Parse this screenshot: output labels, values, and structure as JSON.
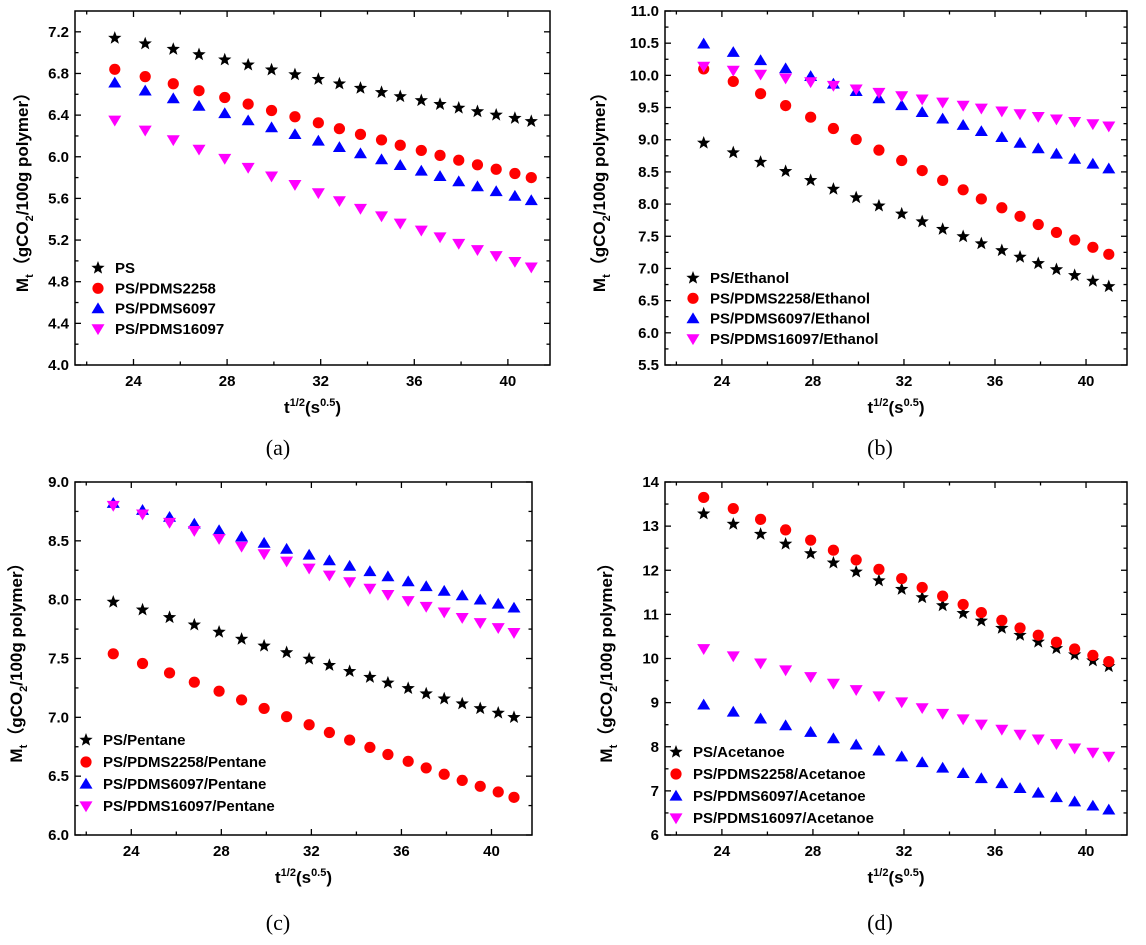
{
  "chart_data": [
    {
      "type": "scatter",
      "caption": "(a)",
      "xlabel": "t1/2(s0.5)",
      "xlabel_parts": {
        "main": "t",
        "sup1": "1/2",
        "mid": "(s",
        "sup2": "0.5",
        "end": ")"
      },
      "ylabel": "Mt（gCO2/100g polymer）",
      "ylabel_parts": {
        "main": "M",
        "sub1": "t",
        "mid": "（gCO",
        "sub2": "2",
        "end": "/100g polymer）"
      },
      "xlim": [
        21.5,
        41.8
      ],
      "ylim": [
        4.0,
        7.4
      ],
      "xticks": [
        24,
        28,
        32,
        36,
        40
      ],
      "yticks": [
        "4.0",
        "4.4",
        "4.8",
        "5.2",
        "5.6",
        "6.0",
        "6.4",
        "6.8",
        "7.2"
      ],
      "legend_position": "bottom-left",
      "series": [
        {
          "name": "PS",
          "marker": "star",
          "color": "#000000",
          "y_start": 7.14,
          "y_end": 6.34
        },
        {
          "name": "PS/PDMS2258",
          "marker": "circle",
          "color": "#ff0000",
          "y_start": 6.84,
          "y_end": 5.8
        },
        {
          "name": "PS/PDMS6097",
          "marker": "triangle-up",
          "color": "#0000ff",
          "y_start": 6.71,
          "y_end": 5.58
        },
        {
          "name": "PS/PDMS16097",
          "marker": "triangle-down",
          "color": "#ff00ff",
          "y_start": 6.35,
          "y_end": 4.94
        }
      ]
    },
    {
      "type": "scatter",
      "caption": "(b)",
      "xlabel": "t1/2(s0.5)",
      "xlabel_parts": {
        "main": "t",
        "sup1": "1/2",
        "mid": "(s",
        "sup2": "0.5",
        "end": ")"
      },
      "ylabel": "Mt（gCO2/100g polymer）",
      "ylabel_parts": {
        "main": "M",
        "sub1": "t",
        "mid": "（gCO",
        "sub2": "2",
        "end": "/100g polymer）"
      },
      "xlim": [
        21.5,
        41.8
      ],
      "ylim": [
        5.5,
        11.0
      ],
      "xticks": [
        24,
        28,
        32,
        36,
        40
      ],
      "yticks": [
        "5.5",
        "6.0",
        "6.5",
        "7.0",
        "7.5",
        "8.0",
        "8.5",
        "9.0",
        "9.5",
        "10.0",
        "10.5",
        "11.0"
      ],
      "legend_position": "bottom-left",
      "series": [
        {
          "name": "PS/Ethanol",
          "marker": "star",
          "color": "#000000",
          "y_start": 8.95,
          "y_end": 6.72
        },
        {
          "name": "PS/PDMS2258/Ethanol",
          "marker": "circle",
          "color": "#ff0000",
          "y_start": 10.1,
          "y_end": 7.22
        },
        {
          "name": "PS/PDMS6097/Ethanol",
          "marker": "triangle-up",
          "color": "#0000ff",
          "y_start": 10.49,
          "y_end": 8.55
        },
        {
          "name": "PS/PDMS16097/Ethanol",
          "marker": "triangle-down",
          "color": "#ff00ff",
          "y_start": 10.14,
          "y_end": 9.21
        }
      ]
    },
    {
      "type": "scatter",
      "caption": "(c)",
      "xlabel": "t1/2(s0.5)",
      "xlabel_parts": {
        "main": "t",
        "sup1": "1/2",
        "mid": "(s",
        "sup2": "0.5",
        "end": ")"
      },
      "ylabel": "Mt（gCO2/100g polymer）",
      "ylabel_parts": {
        "main": "M",
        "sub1": "t",
        "mid": "（gCO",
        "sub2": "2",
        "end": "/100g polymer）"
      },
      "xlim": [
        21.5,
        41.8
      ],
      "ylim": [
        6.0,
        9.0
      ],
      "xticks": [
        24,
        28,
        32,
        36,
        40
      ],
      "yticks": [
        "6.0",
        "6.5",
        "7.0",
        "7.5",
        "8.0",
        "8.5",
        "9.0"
      ],
      "legend_position": "bottom-left",
      "series": [
        {
          "name": "PS/Pentane",
          "marker": "star",
          "color": "#000000",
          "y_start": 7.98,
          "y_end": 7.0
        },
        {
          "name": "PS/PDMS2258/Pentane",
          "marker": "circle",
          "color": "#ff0000",
          "y_start": 7.54,
          "y_end": 6.32
        },
        {
          "name": "PS/PDMS6097/Pentane",
          "marker": "triangle-up",
          "color": "#0000ff",
          "y_start": 8.82,
          "y_end": 7.93
        },
        {
          "name": "PS/PDMS16097/Pentane",
          "marker": "triangle-down",
          "color": "#ff00ff",
          "y_start": 8.8,
          "y_end": 7.72
        }
      ]
    },
    {
      "type": "scatter",
      "caption": "(d)",
      "xlabel": "t1/2(s0.5)",
      "xlabel_parts": {
        "main": "t",
        "sup1": "1/2",
        "mid": "(s",
        "sup2": "0.5",
        "end": ")"
      },
      "ylabel": "Mt（gCO2/100g polymer）",
      "ylabel_parts": {
        "main": "M",
        "sub1": "t",
        "mid": "（gCO",
        "sub2": "2",
        "end": "/100g polymer）"
      },
      "xlim": [
        21.5,
        41.8
      ],
      "ylim": [
        6,
        14
      ],
      "xticks": [
        24,
        28,
        32,
        36,
        40
      ],
      "yticks": [
        "6",
        "7",
        "8",
        "9",
        "10",
        "11",
        "12",
        "13",
        "14"
      ],
      "legend_position": "bottom-left",
      "series": [
        {
          "name": "PS/Acetanoe",
          "marker": "star",
          "color": "#000000",
          "y_start": 13.28,
          "y_end": 9.82
        },
        {
          "name": "PS/PDMS2258/Acetanoe",
          "marker": "circle",
          "color": "#ff0000",
          "y_start": 13.65,
          "y_end": 9.93
        },
        {
          "name": "PS/PDMS6097/Acetanoe",
          "marker": "triangle-up",
          "color": "#0000ff",
          "y_start": 8.95,
          "y_end": 6.57
        },
        {
          "name": "PS/PDMS16097/Acetanoe",
          "marker": "triangle-down",
          "color": "#ff00ff",
          "y_start": 10.22,
          "y_end": 7.78
        }
      ]
    }
  ],
  "x_values": [
    23.2,
    24.5,
    25.7,
    26.8,
    27.9,
    28.9,
    29.9,
    30.9,
    31.9,
    32.8,
    33.7,
    34.6,
    35.4,
    36.3,
    37.1,
    37.9,
    38.7,
    39.5,
    40.3,
    41.0
  ]
}
